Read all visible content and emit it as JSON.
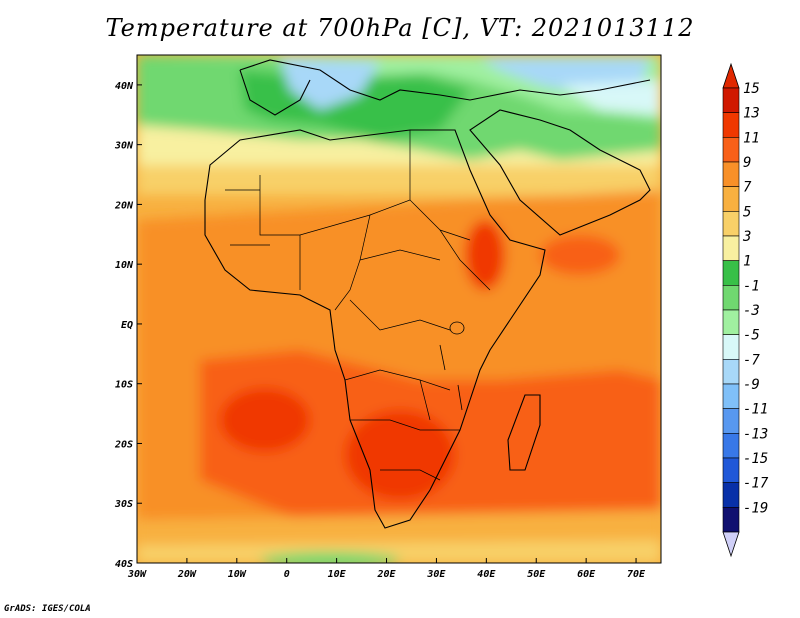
{
  "title": "Temperature at 700hPa [C], VT: 2021013112",
  "footer": "GrADS: IGES/COLA",
  "map": {
    "lon_ticks": [
      "30W",
      "20W",
      "10W",
      "0",
      "10E",
      "20E",
      "30E",
      "40E",
      "50E",
      "60E",
      "70E"
    ],
    "lat_ticks": [
      "40N",
      "30N",
      "20N",
      "10N",
      "EQ",
      "10S",
      "20S",
      "30S",
      "40S"
    ],
    "lon_range": [
      -30,
      75
    ],
    "lat_range": [
      -40,
      45
    ]
  },
  "colorbar": {
    "labels": [
      "15",
      "13",
      "11",
      "9",
      "7",
      "5",
      "3",
      "1",
      "-1",
      "-3",
      "-5",
      "-7",
      "-9",
      "-11",
      "-13",
      "-15",
      "-17",
      "-19"
    ],
    "colors": [
      "#d01800",
      "#f03800",
      "#f86018",
      "#f89028",
      "#f8b040",
      "#f8d068",
      "#f8f0a0",
      "#38c048",
      "#70d870",
      "#a0f0a0",
      "#d8f8f8",
      "#a8d8f8",
      "#80c0f8",
      "#5898f0",
      "#3878e8",
      "#2058d8",
      "#0830a8",
      "#101070"
    ],
    "cap_top_color": "#e02800",
    "cap_bottom_color": "#d0d0f8"
  },
  "colors": {
    "ocean_background": "#f8b040",
    "land_border": "#000000"
  }
}
